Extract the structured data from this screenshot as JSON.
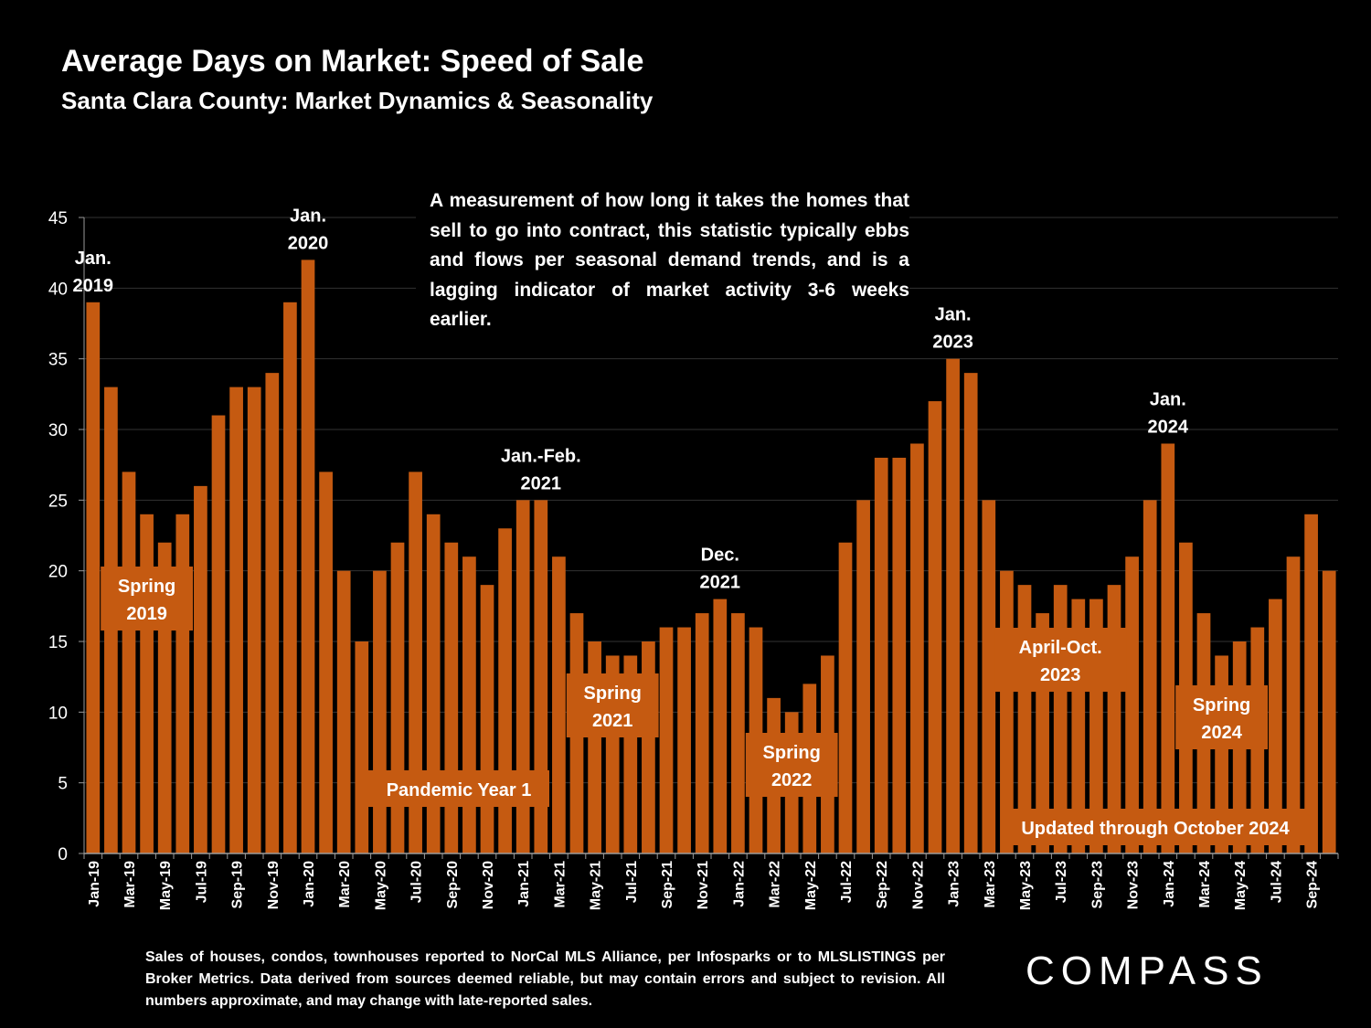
{
  "header": {
    "title": "Average Days on Market: Speed of Sale",
    "subtitle": "Santa Clara County: Market Dynamics & Seasonality"
  },
  "description": "A measurement of how long it takes the homes that sell to go into contract, this statistic typically ebbs and flows per seasonal demand trends, and is a lagging indicator of market activity 3-6 weeks earlier.",
  "footnote": "Sales of houses, condos, townhouses reported to NorCal MLS Alliance, per Infosparks or to MLSLISTINGS per Broker Metrics. Data derived from sources deemed reliable, but may contain errors and subject to revision. All numbers approximate, and may change with late-reported sales.",
  "brand": {
    "logo_text": "COMPASS"
  },
  "colors": {
    "bar": "#c55a11",
    "background": "#000000",
    "gridline": "#333333",
    "text": "#ffffff"
  },
  "chart_data": {
    "type": "bar",
    "title": "Average Days on Market: Speed of Sale",
    "ylim": [
      0,
      45
    ],
    "yticks": [
      0,
      5,
      10,
      15,
      20,
      25,
      30,
      35,
      40,
      45
    ],
    "grid": true,
    "categories": [
      "Jan-19",
      "Feb-19",
      "Mar-19",
      "Apr-19",
      "May-19",
      "Jun-19",
      "Jul-19",
      "Aug-19",
      "Sep-19",
      "Oct-19",
      "Nov-19",
      "Dec-19",
      "Jan-20",
      "Feb-20",
      "Mar-20",
      "Apr-20",
      "May-20",
      "Jun-20",
      "Jul-20",
      "Aug-20",
      "Sep-20",
      "Oct-20",
      "Nov-20",
      "Dec-20",
      "Jan-21",
      "Feb-21",
      "Mar-21",
      "Apr-21",
      "May-21",
      "Jun-21",
      "Jul-21",
      "Aug-21",
      "Sep-21",
      "Oct-21",
      "Nov-21",
      "Dec-21",
      "Jan-22",
      "Feb-22",
      "Mar-22",
      "Apr-22",
      "May-22",
      "Jun-22",
      "Jul-22",
      "Aug-22",
      "Sep-22",
      "Oct-22",
      "Nov-22",
      "Dec-22",
      "Jan-23",
      "Feb-23",
      "Mar-23",
      "Apr-23",
      "May-23",
      "Jun-23",
      "Jul-23",
      "Aug-23",
      "Sep-23",
      "Oct-23",
      "Nov-23",
      "Dec-23",
      "Jan-24",
      "Feb-24",
      "Mar-24",
      "Apr-24",
      "May-24",
      "Jun-24",
      "Jul-24",
      "Aug-24",
      "Sep-24",
      "Oct-24"
    ],
    "x_tick_labels": [
      "Jan-19",
      "Mar-19",
      "May-19",
      "Jul-19",
      "Sep-19",
      "Nov-19",
      "Jan-20",
      "Mar-20",
      "May-20",
      "Jul-20",
      "Sep-20",
      "Nov-20",
      "Jan-21",
      "Mar-21",
      "May-21",
      "Jul-21",
      "Sep-21",
      "Nov-21",
      "Jan-22",
      "Mar-22",
      "May-22",
      "Jul-22",
      "Sep-22",
      "Nov-22",
      "Jan-23",
      "Mar-23",
      "May-23",
      "Jul-23",
      "Sep-23",
      "Nov-23",
      "Jan-24",
      "Mar-24",
      "May-24",
      "Jul-24",
      "Sep-24"
    ],
    "values": [
      39,
      33,
      27,
      24,
      22,
      24,
      26,
      31,
      33,
      33,
      34,
      39,
      42,
      27,
      20,
      15,
      20,
      22,
      27,
      24,
      22,
      21,
      19,
      23,
      25,
      25,
      21,
      17,
      15,
      14,
      14,
      15,
      16,
      16,
      17,
      18,
      17,
      16,
      11,
      10,
      12,
      14,
      22,
      25,
      28,
      28,
      29,
      32,
      35,
      34,
      25,
      20,
      19,
      17,
      19,
      18,
      18,
      19,
      21,
      25,
      29,
      22,
      17,
      14,
      15,
      16,
      18,
      21,
      24,
      20
    ],
    "annotations": [
      {
        "lines": [
          "Jan.",
          "2019"
        ],
        "category": "Jan-19",
        "style": "text"
      },
      {
        "lines": [
          "Jan.",
          "2020"
        ],
        "category": "Jan-20",
        "style": "text"
      },
      {
        "lines": [
          "Jan.-Feb.",
          "2021"
        ],
        "category": "Feb-21",
        "style": "text"
      },
      {
        "lines": [
          "Dec.",
          "2021"
        ],
        "category": "Dec-21",
        "style": "text"
      },
      {
        "lines": [
          "Jan.",
          "2023"
        ],
        "category": "Jan-23",
        "style": "text"
      },
      {
        "lines": [
          "Jan.",
          "2024"
        ],
        "category": "Jan-24",
        "style": "text"
      },
      {
        "lines": [
          "Spring",
          "2019"
        ],
        "category": "Apr-19",
        "style": "box"
      },
      {
        "lines": [
          "Pandemic Year 1"
        ],
        "category": "Sep-20",
        "style": "box"
      },
      {
        "lines": [
          "Spring",
          "2021"
        ],
        "category": "Jun-21",
        "style": "box"
      },
      {
        "lines": [
          "Spring",
          "2022"
        ],
        "category": "Apr-22",
        "style": "box"
      },
      {
        "lines": [
          "April-Oct.",
          "2023"
        ],
        "category": "Jul-23",
        "style": "box"
      },
      {
        "lines": [
          "Spring",
          "2024"
        ],
        "category": "Apr-24",
        "style": "box"
      },
      {
        "lines": [
          "Updated through October 2024"
        ],
        "category": "Dec-23",
        "style": "box"
      }
    ]
  }
}
